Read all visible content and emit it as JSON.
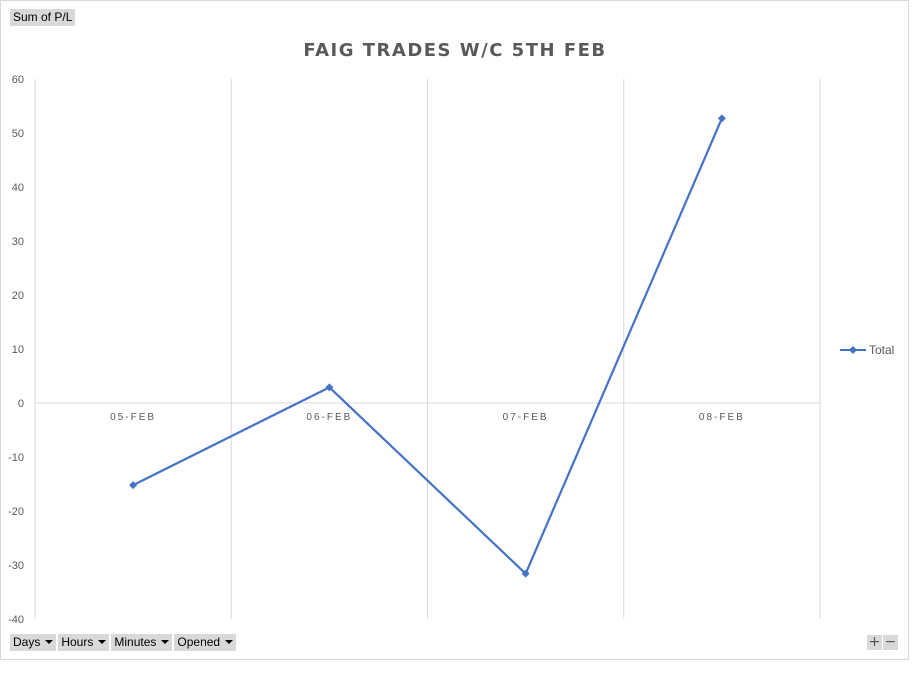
{
  "pivot": {
    "value_field": "Sum of P/L",
    "axis_fields": [
      "Days",
      "Hours",
      "Minutes",
      "Opened"
    ],
    "zoom_in": "+",
    "zoom_out": "−"
  },
  "chart_data": {
    "type": "line",
    "title": "FAIG TRADES W/C 5TH FEB",
    "xlabel": "",
    "ylabel": "",
    "categories": [
      "05-FEB",
      "06-FEB",
      "07-FEB",
      "08-FEB"
    ],
    "series": [
      {
        "name": "Total",
        "values": [
          -15.2,
          2.9,
          -31.6,
          52.7
        ],
        "color": "#4472c4",
        "marker": "diamond"
      }
    ],
    "ylim": [
      -40,
      60
    ],
    "yticks": [
      60,
      50,
      40,
      30,
      20,
      10,
      0,
      -10,
      -20,
      -30,
      -40
    ],
    "grid": "vertical",
    "legend": "right"
  }
}
